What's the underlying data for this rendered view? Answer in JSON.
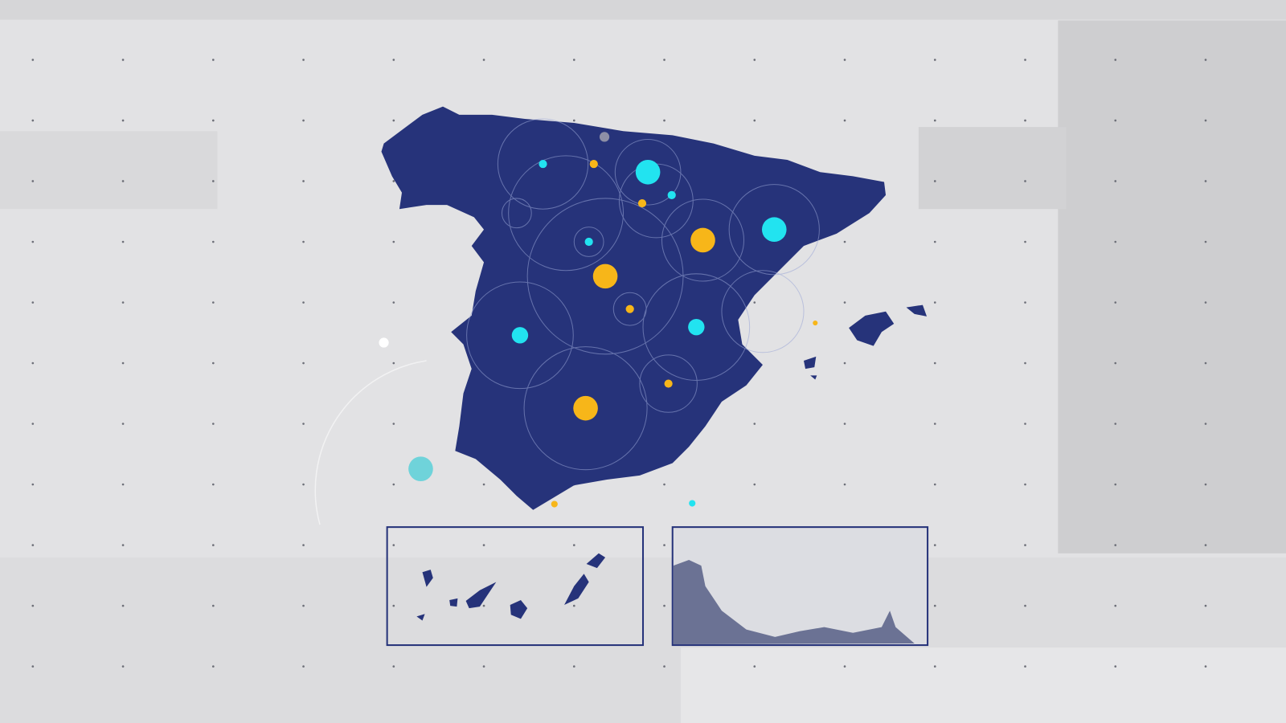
{
  "colors": {
    "background": "#e4e4e6",
    "land": "#26337a",
    "accent_cyan": "#22e3f0",
    "accent_yellow": "#f7b619",
    "frame": "#26337a",
    "rings": "#9aa6d6"
  },
  "map": {
    "region": "spain",
    "insets": [
      "canary-islands",
      "ceuta-melilla-coast"
    ],
    "markers": [
      {
        "color": "cyan",
        "size": "large"
      },
      {
        "color": "cyan",
        "size": "large"
      },
      {
        "color": "cyan",
        "size": "medium"
      },
      {
        "color": "cyan",
        "size": "small"
      },
      {
        "color": "cyan",
        "size": "small"
      },
      {
        "color": "cyan",
        "size": "small"
      },
      {
        "color": "cyan",
        "size": "medium"
      },
      {
        "color": "yellow",
        "size": "large"
      },
      {
        "color": "yellow",
        "size": "large"
      },
      {
        "color": "yellow",
        "size": "large"
      },
      {
        "color": "yellow",
        "size": "small"
      },
      {
        "color": "yellow",
        "size": "small"
      },
      {
        "color": "yellow",
        "size": "small"
      },
      {
        "color": "yellow",
        "size": "small"
      }
    ]
  }
}
